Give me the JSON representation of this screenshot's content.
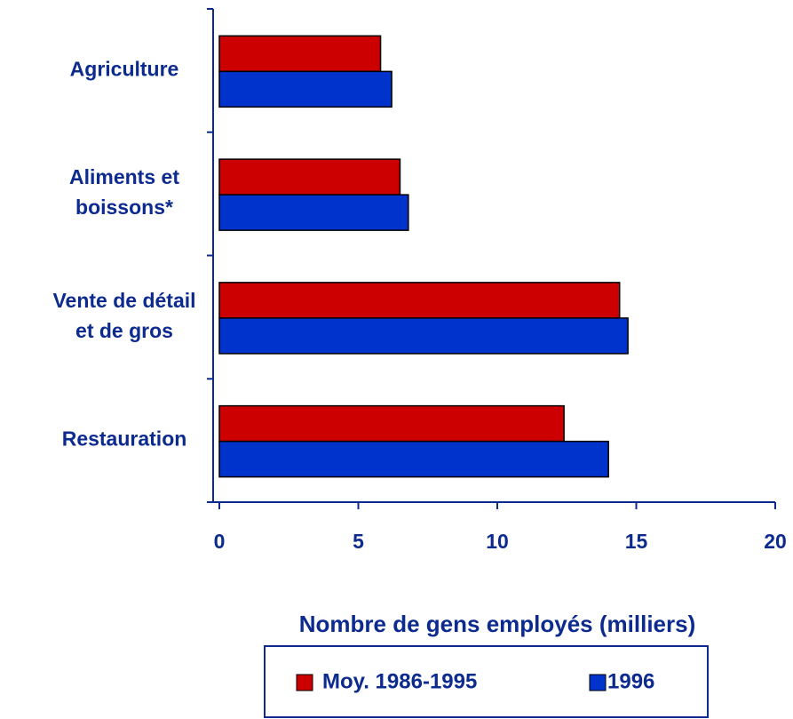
{
  "chart_data": {
    "type": "bar",
    "orientation": "horizontal",
    "categories": [
      "Agriculture",
      "Aliments et\nboissons*",
      "Vente de détail\net de gros",
      "Restauration"
    ],
    "series": [
      {
        "name": "Moy. 1986-1995",
        "color": "#cc0000",
        "values": [
          5.8,
          6.5,
          14.4,
          12.4
        ]
      },
      {
        "name": "1996",
        "color": "#0033cc",
        "values": [
          6.2,
          6.8,
          14.7,
          14.0
        ]
      }
    ],
    "xlabel": "Nombre de gens employés (milliers)",
    "xlim": [
      0,
      20
    ],
    "xticks": [
      0,
      5,
      10,
      15,
      20
    ]
  }
}
